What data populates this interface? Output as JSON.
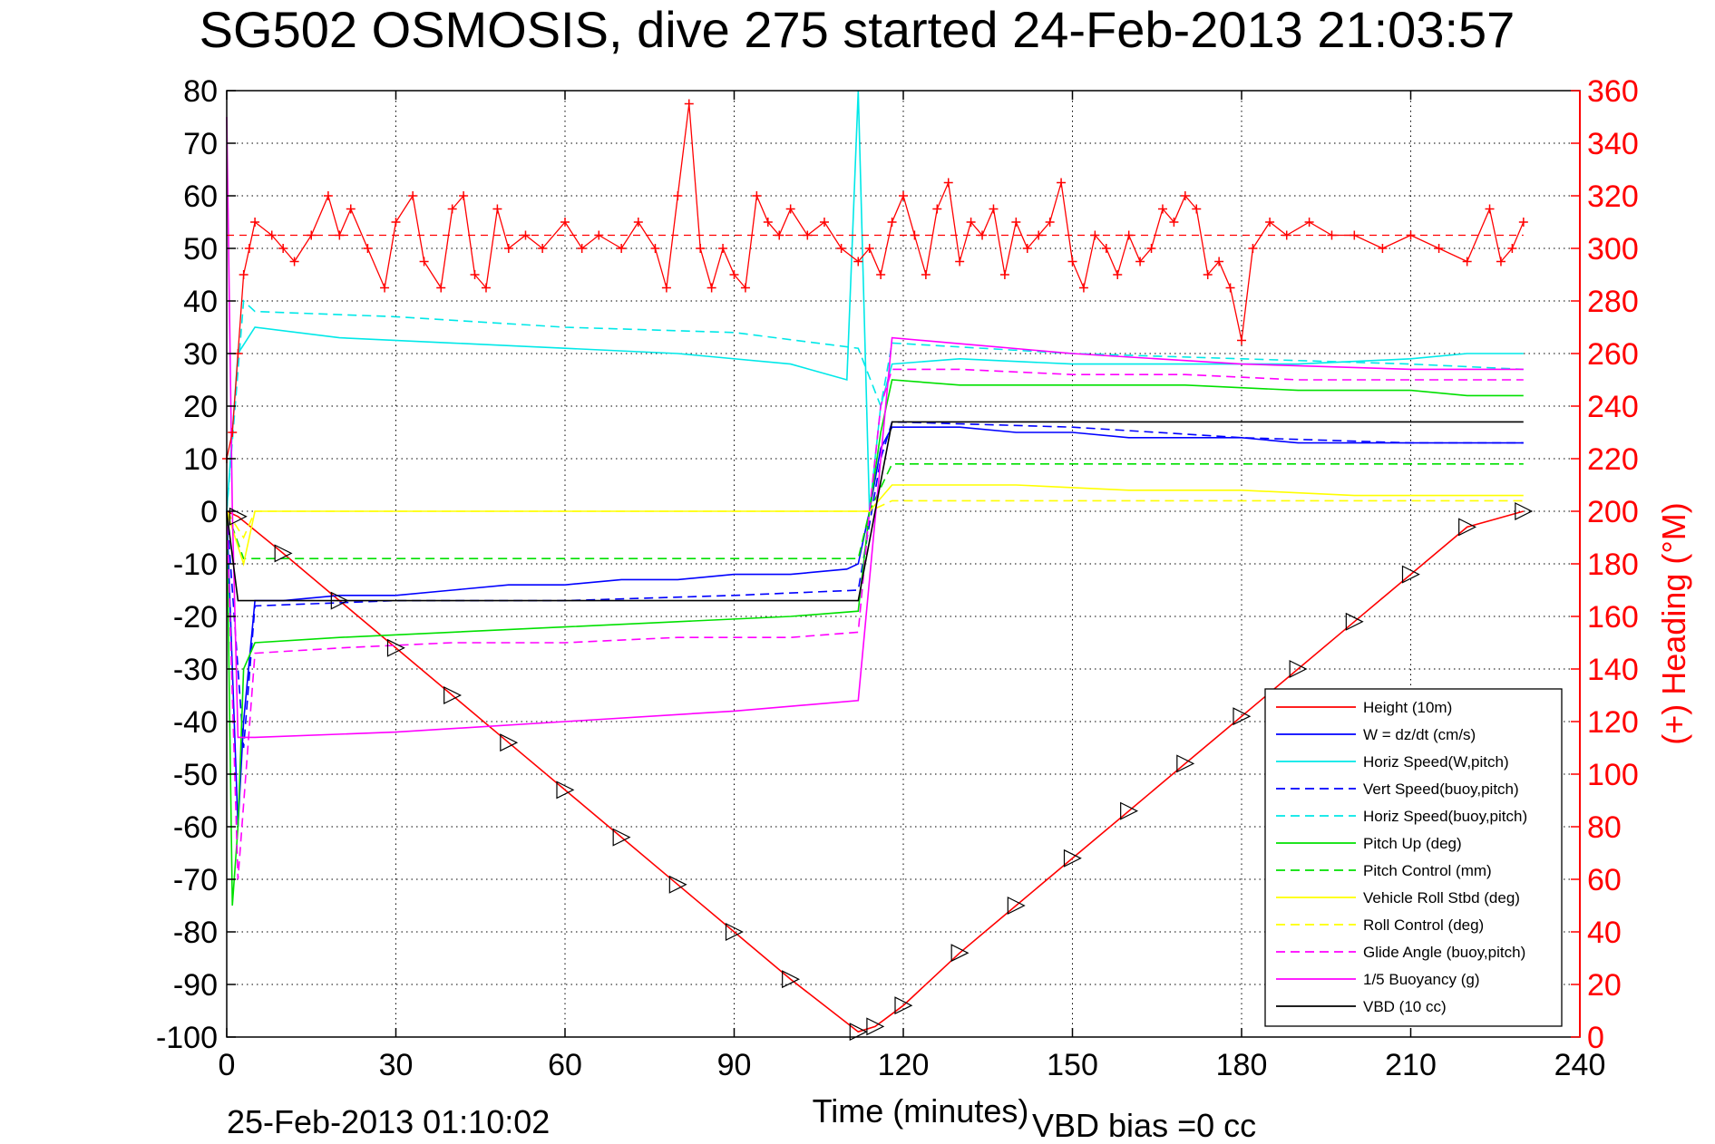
{
  "chart_data": {
    "type": "line",
    "title": "SG502 OSMOSIS, dive 275 started 24-Feb-2013 21:03:57",
    "xlabel": "Time (minutes)",
    "ylabel": "",
    "ylabel_right": "(+) Heading (°M)",
    "xlim": [
      0,
      240
    ],
    "ylim": [
      -100,
      80
    ],
    "ylim_right": [
      0,
      360
    ],
    "x_ticks": [
      0,
      30,
      60,
      90,
      120,
      150,
      180,
      210,
      240
    ],
    "y_ticks": [
      80,
      70,
      60,
      50,
      40,
      30,
      20,
      10,
      0,
      -10,
      -20,
      -30,
      -40,
      -50,
      -60,
      -70,
      -80,
      -90,
      -100
    ],
    "y_ticks_right": [
      360,
      340,
      320,
      300,
      280,
      260,
      240,
      220,
      200,
      180,
      160,
      140,
      120,
      100,
      80,
      60,
      40,
      20,
      0
    ],
    "grid": true,
    "legend_position": "bottom-right",
    "footer_left": "25-Feb-2013 01:10:02",
    "footer_right": "VBD bias =0 cc",
    "colors": {
      "red": "#ff0000",
      "blue": "#0000ff",
      "cyan": "#00ffff",
      "green": "#00e000",
      "yellow": "#ffff00",
      "magenta": "#ff00ff",
      "black": "#000000"
    },
    "series": [
      {
        "name": "Height (10m)",
        "color": "#ff0000",
        "style": "solid",
        "x": [
          0,
          2,
          10,
          20,
          30,
          40,
          50,
          60,
          70,
          80,
          90,
          100,
          112,
          115,
          120,
          130,
          140,
          150,
          160,
          170,
          180,
          190,
          200,
          210,
          220,
          230
        ],
        "y": [
          0,
          -1,
          -8,
          -17,
          -26,
          -35,
          -44,
          -53,
          -62,
          -71,
          -80,
          -89,
          -99,
          -98,
          -94,
          -84,
          -75,
          -66,
          -57,
          -48,
          -39,
          -30,
          -21,
          -12,
          -3,
          0
        ]
      },
      {
        "name": "W = dz/dt (cm/s)",
        "color": "#0000ff",
        "style": "solid",
        "x": [
          0,
          1,
          2,
          3,
          5,
          10,
          20,
          30,
          40,
          50,
          60,
          70,
          80,
          90,
          100,
          110,
          112,
          114,
          116,
          118,
          120,
          130,
          140,
          150,
          160,
          170,
          180,
          190,
          200,
          210,
          220,
          230
        ],
        "y": [
          0,
          -30,
          -60,
          -40,
          -17,
          -17,
          -16,
          -16,
          -15,
          -14,
          -14,
          -13,
          -13,
          -12,
          -12,
          -11,
          -10,
          0,
          12,
          16,
          16,
          16,
          15,
          15,
          14,
          14,
          14,
          13,
          13,
          13,
          13,
          13
        ]
      },
      {
        "name": "Horiz Speed(W,pitch)",
        "color": "#00e8e8",
        "style": "solid",
        "x": [
          0,
          2,
          5,
          20,
          40,
          60,
          80,
          100,
          110,
          112,
          113,
          114,
          116,
          118,
          130,
          150,
          170,
          190,
          210,
          220,
          230
        ],
        "y": [
          0,
          30,
          35,
          33,
          32,
          31,
          30,
          28,
          25,
          80,
          40,
          0,
          20,
          28,
          29,
          28,
          28,
          28,
          29,
          30,
          30
        ]
      },
      {
        "name": "Vert Speed(buoy,pitch)",
        "color": "#0000ff",
        "style": "dashed",
        "x": [
          0,
          3,
          5,
          30,
          60,
          90,
          112,
          116,
          118,
          150,
          180,
          210,
          230
        ],
        "y": [
          0,
          -45,
          -18,
          -17,
          -17,
          -16,
          -15,
          10,
          17,
          16,
          14,
          13,
          13
        ]
      },
      {
        "name": "Horiz Speed(buoy,pitch)",
        "color": "#00e8e8",
        "style": "dashed",
        "x": [
          0,
          3,
          5,
          30,
          60,
          90,
          112,
          116,
          118,
          150,
          180,
          210,
          230
        ],
        "y": [
          0,
          40,
          38,
          37,
          35,
          34,
          31,
          20,
          32,
          30,
          29,
          28,
          27
        ]
      },
      {
        "name": "Pitch Up (deg)",
        "color": "#00e000",
        "style": "solid",
        "x": [
          0,
          1,
          2,
          3,
          5,
          20,
          40,
          60,
          80,
          100,
          112,
          114,
          116,
          118,
          130,
          150,
          170,
          190,
          210,
          220,
          230
        ],
        "y": [
          0,
          -75,
          -60,
          -30,
          -25,
          -24,
          -23,
          -22,
          -21,
          -20,
          -19,
          0,
          15,
          25,
          24,
          24,
          24,
          23,
          23,
          22,
          22
        ]
      },
      {
        "name": "Pitch Control (mm)",
        "color": "#00e000",
        "style": "dashed",
        "x": [
          0,
          3,
          5,
          112,
          114,
          118,
          230
        ],
        "y": [
          0,
          -9,
          -9,
          -9,
          0,
          9,
          9
        ]
      },
      {
        "name": "Vehicle Roll Stbd (deg)",
        "color": "#ffff00",
        "style": "solid",
        "x": [
          0,
          3,
          5,
          20,
          40,
          60,
          80,
          100,
          112,
          114,
          118,
          140,
          160,
          180,
          200,
          220,
          230
        ],
        "y": [
          0,
          -10,
          0,
          0,
          0,
          0,
          0,
          0,
          0,
          0,
          5,
          5,
          4,
          4,
          3,
          3,
          3
        ]
      },
      {
        "name": "Roll Control (deg)",
        "color": "#ffff00",
        "style": "dashed",
        "x": [
          0,
          3,
          5,
          112,
          114,
          118,
          230
        ],
        "y": [
          0,
          -5,
          0,
          0,
          0,
          2,
          2
        ]
      },
      {
        "name": "Glide Angle (buoy,pitch)",
        "color": "#ff00ff",
        "style": "dashed",
        "x": [
          0,
          2,
          5,
          20,
          40,
          60,
          80,
          100,
          112,
          114,
          116,
          118,
          130,
          150,
          170,
          190,
          210,
          230
        ],
        "y": [
          0,
          -70,
          -27,
          -26,
          -25,
          -25,
          -24,
          -24,
          -23,
          0,
          20,
          27,
          27,
          26,
          26,
          25,
          25,
          25
        ]
      },
      {
        "name": "1/5 Buoyancy (g)",
        "color": "#ff00ff",
        "style": "solid",
        "x": [
          0,
          1,
          2,
          5,
          30,
          60,
          90,
          112,
          118,
          150,
          180,
          210,
          230
        ],
        "y": [
          75,
          0,
          -43,
          -43,
          -42,
          -40,
          -38,
          -36,
          33,
          30,
          28,
          27,
          27
        ]
      },
      {
        "name": "VBD (10 cc)",
        "color": "#000000",
        "style": "solid",
        "x": [
          0,
          2,
          5,
          112,
          118,
          230
        ],
        "y": [
          0,
          -17,
          -17,
          -17,
          17,
          17
        ]
      }
    ],
    "heading_series": {
      "name": "(+) Heading (°M)",
      "color": "#ff0000",
      "marker": "+",
      "reference_line": 305,
      "x": [
        0,
        1,
        2,
        3,
        4,
        5,
        8,
        10,
        12,
        15,
        18,
        20,
        22,
        25,
        28,
        30,
        33,
        35,
        38,
        40,
        42,
        44,
        46,
        48,
        50,
        53,
        56,
        60,
        63,
        66,
        70,
        73,
        76,
        78,
        80,
        82,
        84,
        86,
        88,
        90,
        92,
        94,
        96,
        98,
        100,
        103,
        106,
        109,
        112,
        114,
        116,
        118,
        120,
        122,
        124,
        126,
        128,
        130,
        132,
        134,
        136,
        138,
        140,
        142,
        144,
        146,
        148,
        150,
        152,
        154,
        156,
        158,
        160,
        162,
        164,
        166,
        168,
        170,
        172,
        174,
        176,
        178,
        180,
        182,
        185,
        188,
        192,
        196,
        200,
        205,
        210,
        215,
        220,
        224,
        226,
        228,
        230
      ],
      "y": [
        220,
        230,
        260,
        290,
        300,
        310,
        305,
        300,
        295,
        305,
        320,
        305,
        315,
        300,
        285,
        310,
        320,
        295,
        285,
        315,
        320,
        290,
        285,
        315,
        300,
        305,
        300,
        310,
        300,
        305,
        300,
        310,
        300,
        285,
        320,
        355,
        300,
        285,
        300,
        290,
        285,
        320,
        310,
        305,
        315,
        305,
        310,
        300,
        295,
        300,
        290,
        310,
        320,
        305,
        290,
        315,
        325,
        295,
        310,
        305,
        315,
        290,
        310,
        300,
        305,
        310,
        325,
        295,
        285,
        305,
        300,
        290,
        305,
        295,
        300,
        315,
        310,
        320,
        315,
        290,
        295,
        285,
        265,
        300,
        310,
        305,
        310,
        305,
        305,
        300,
        305,
        300,
        295,
        315,
        295,
        300,
        310
      ]
    }
  }
}
